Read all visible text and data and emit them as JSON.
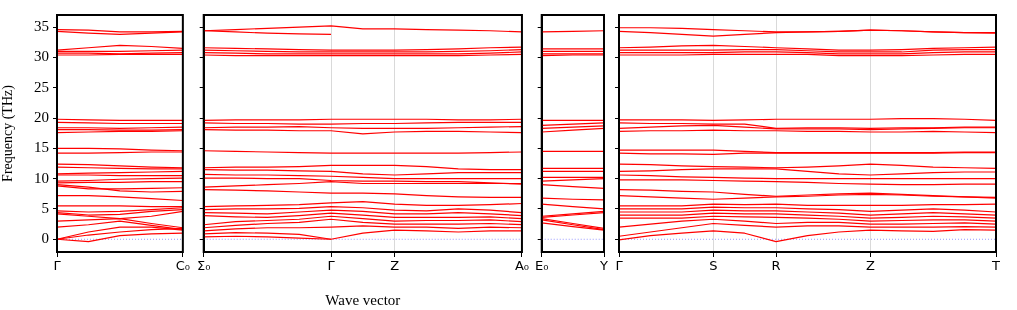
{
  "chart_data": [
    {
      "type": "line",
      "ylabel": "Frequency (THz)",
      "categories": [
        "Γ",
        null,
        null,
        null,
        "C₀"
      ],
      "ylim": [
        -2.1,
        37
      ],
      "yticks": [
        0,
        5,
        10,
        15,
        20,
        25,
        30,
        35
      ],
      "ref_lines": [
        {
          "axis": "y",
          "value": 0,
          "color": "#8080ff",
          "line_style": "dotted"
        }
      ],
      "series": [
        {
          "color": "#ff0000",
          "values": [
            34.6,
            34.5,
            34.2,
            34.2,
            34.3
          ]
        },
        {
          "color": "#ff0000",
          "values": [
            34.3,
            34.0,
            33.8,
            34.0,
            34.2
          ]
        },
        {
          "color": "#ff0000",
          "values": [
            31.2,
            31.6,
            32.0,
            31.8,
            31.5
          ]
        },
        {
          "color": "#ff0000",
          "values": [
            31.0,
            31.0,
            31.0,
            31.1,
            31.2
          ]
        },
        {
          "color": "#ff0000",
          "values": [
            30.7,
            30.7,
            30.6,
            30.7,
            30.8
          ]
        },
        {
          "color": "#ff0000",
          "values": [
            30.4,
            30.4,
            30.5,
            30.5,
            30.5
          ]
        },
        {
          "color": "#ff0000",
          "values": [
            19.8,
            19.7,
            19.6,
            19.6,
            19.6
          ]
        },
        {
          "color": "#ff0000",
          "values": [
            19.3,
            19.2,
            19.1,
            19.1,
            19.1
          ]
        },
        {
          "color": "#ff0000",
          "values": [
            18.4,
            18.4,
            18.3,
            18.4,
            18.5
          ]
        },
        {
          "color": "#ff0000",
          "values": [
            18.1,
            18.1,
            18.0,
            18.0,
            18.1
          ]
        },
        {
          "color": "#ff0000",
          "values": [
            17.6,
            17.7,
            17.8,
            17.8,
            17.9
          ]
        },
        {
          "color": "#ff0000",
          "values": [
            15.0,
            15.0,
            14.9,
            14.7,
            14.6
          ]
        },
        {
          "color": "#ff0000",
          "values": [
            14.2,
            14.2,
            14.3,
            14.4,
            14.4
          ]
        },
        {
          "color": "#ff0000",
          "values": [
            12.4,
            12.3,
            12.1,
            11.9,
            11.8
          ]
        },
        {
          "color": "#ff0000",
          "values": [
            11.9,
            11.8,
            11.7,
            11.6,
            11.6
          ]
        },
        {
          "color": "#ff0000",
          "values": [
            10.8,
            10.9,
            11.0,
            11.1,
            11.2
          ]
        },
        {
          "color": "#ff0000",
          "values": [
            10.6,
            10.6,
            10.5,
            10.5,
            10.5
          ]
        },
        {
          "color": "#ff0000",
          "values": [
            9.6,
            9.7,
            9.9,
            10.0,
            10.1
          ]
        },
        {
          "color": "#ff0000",
          "values": [
            9.3,
            9.4,
            9.4,
            9.5,
            9.5
          ]
        },
        {
          "color": "#ff0000",
          "values": [
            9.0,
            8.6,
            8.0,
            7.8,
            7.9
          ]
        },
        {
          "color": "#ff0000",
          "values": [
            8.8,
            8.3,
            8.3,
            8.4,
            8.5
          ]
        },
        {
          "color": "#ff0000",
          "values": [
            7.2,
            7.2,
            7.0,
            6.7,
            6.4
          ]
        },
        {
          "color": "#ff0000",
          "values": [
            5.5,
            5.5,
            5.5,
            5.4,
            5.4
          ]
        },
        {
          "color": "#ff0000",
          "values": [
            4.7,
            4.5,
            4.6,
            4.9,
            5.2
          ]
        },
        {
          "color": "#ff0000",
          "values": [
            4.4,
            4.0,
            4.1,
            4.6,
            4.9
          ]
        },
        {
          "color": "#ff0000",
          "values": [
            4.2,
            3.8,
            3.4,
            3.8,
            4.6
          ]
        },
        {
          "color": "#ff0000",
          "values": [
            3.0,
            3.2,
            3.4,
            2.6,
            1.9
          ]
        },
        {
          "color": "#ff0000",
          "values": [
            2.0,
            2.4,
            3.0,
            2.3,
            1.6
          ]
        },
        {
          "color": "#ff0000",
          "values": [
            0,
            1.2,
            2.0,
            2.0,
            1.5
          ]
        },
        {
          "color": "#ff0000",
          "values": [
            0,
            0.7,
            1.2,
            1.6,
            1.8
          ]
        },
        {
          "color": "#ff0000",
          "values": [
            0,
            -0.4,
            0.6,
            0.9,
            1.0
          ]
        }
      ]
    },
    {
      "type": "line",
      "xlabel": "Wave vector",
      "categories": [
        "Σ₀",
        null,
        null,
        null,
        "Γ",
        null,
        "Z",
        null,
        null,
        null,
        "A₀"
      ],
      "ylim": [
        -2.1,
        37
      ],
      "tick_labels": "x",
      "grid": "x",
      "ref_lines": [
        {
          "axis": "y",
          "value": 0,
          "color": "#8080ff",
          "line_style": "dotted"
        }
      ],
      "series": [
        {
          "color": "#ff0000",
          "values": [
            34.4,
            34.6,
            34.8,
            35.0,
            35.2,
            34.7,
            34.7,
            34.6,
            34.5,
            34.4,
            34.2
          ]
        },
        {
          "color": "#ff0000",
          "values": [
            34.4,
            34.2,
            34.0,
            33.9,
            33.8,
            null,
            null,
            null,
            null,
            null,
            null
          ]
        },
        {
          "color": "#ff0000",
          "values": [
            31.6,
            31.5,
            31.4,
            31.3,
            31.2,
            31.2,
            31.2,
            31.3,
            31.4,
            31.6,
            31.7
          ]
        },
        {
          "color": "#ff0000",
          "values": [
            31.2,
            31.1,
            31.0,
            30.9,
            30.9,
            30.9,
            30.9,
            30.9,
            31.0,
            31.1,
            31.3
          ]
        },
        {
          "color": "#ff0000",
          "values": [
            30.8,
            30.7,
            30.6,
            30.6,
            30.6,
            30.6,
            30.6,
            30.6,
            30.6,
            30.7,
            30.9
          ]
        },
        {
          "color": "#ff0000",
          "values": [
            30.4,
            30.3,
            30.3,
            30.3,
            30.3,
            30.3,
            30.3,
            30.3,
            30.3,
            30.4,
            30.5
          ]
        },
        {
          "color": "#ff0000",
          "values": [
            19.6,
            19.7,
            19.7,
            19.7,
            19.8,
            19.8,
            19.8,
            19.8,
            19.7,
            19.7,
            19.8
          ]
        },
        {
          "color": "#ff0000",
          "values": [
            19.2,
            19.1,
            19.1,
            19.0,
            19.0,
            19.1,
            19.1,
            19.2,
            19.3,
            19.3,
            19.3
          ]
        },
        {
          "color": "#ff0000",
          "values": [
            18.4,
            18.5,
            18.5,
            18.6,
            18.4,
            18.3,
            18.3,
            18.3,
            18.4,
            18.5,
            18.6
          ]
        },
        {
          "color": "#ff0000",
          "values": [
            18.1,
            18.0,
            18.0,
            17.9,
            17.9,
            17.4,
            17.7,
            17.8,
            17.8,
            17.7,
            17.6
          ]
        },
        {
          "color": "#ff0000",
          "values": [
            14.6,
            14.5,
            14.4,
            14.3,
            14.2,
            14.2,
            14.2,
            14.2,
            14.2,
            14.3,
            14.4
          ]
        },
        {
          "color": "#ff0000",
          "values": [
            11.8,
            11.9,
            11.9,
            12.0,
            12.2,
            12.2,
            12.2,
            12.0,
            11.6,
            11.5,
            11.5
          ]
        },
        {
          "color": "#ff0000",
          "values": [
            11.5,
            11.4,
            11.4,
            11.3,
            11.2,
            10.8,
            10.6,
            10.8,
            11.0,
            11.0,
            11.0
          ]
        },
        {
          "color": "#ff0000",
          "values": [
            10.7,
            10.6,
            10.6,
            10.5,
            10.4,
            10.2,
            10.0,
            10.0,
            10.0,
            10.0,
            10.0
          ]
        },
        {
          "color": "#ff0000",
          "values": [
            10.1,
            10.1,
            10.0,
            10.0,
            9.7,
            9.6,
            9.6,
            9.5,
            9.5,
            9.3,
            9.1
          ]
        },
        {
          "color": "#ff0000",
          "values": [
            8.6,
            8.8,
            9.0,
            9.2,
            9.5,
            9.2,
            9.2,
            9.2,
            9.2,
            9.2,
            9.2
          ]
        },
        {
          "color": "#ff0000",
          "values": [
            8.2,
            8.1,
            8.0,
            7.8,
            7.6,
            7.6,
            7.5,
            7.2,
            7.0,
            6.9,
            6.9
          ]
        },
        {
          "color": "#ff0000",
          "values": [
            5.4,
            5.5,
            5.6,
            5.7,
            6.0,
            6.2,
            5.8,
            5.6,
            5.6,
            5.7,
            5.9
          ]
        },
        {
          "color": "#ff0000",
          "values": [
            4.9,
            5.0,
            5.0,
            5.1,
            5.4,
            5.2,
            4.8,
            4.7,
            5.0,
            4.8,
            4.4
          ]
        },
        {
          "color": "#ff0000",
          "values": [
            4.4,
            4.3,
            4.2,
            4.5,
            4.8,
            4.6,
            4.2,
            4.2,
            4.4,
            4.2,
            3.9
          ]
        },
        {
          "color": "#ff0000",
          "values": [
            3.9,
            3.7,
            3.6,
            3.9,
            4.3,
            4.0,
            3.6,
            3.6,
            3.6,
            3.7,
            3.4
          ]
        },
        {
          "color": "#ff0000",
          "values": [
            2.4,
            2.9,
            3.1,
            3.3,
            3.8,
            3.4,
            3.0,
            3.1,
            3.1,
            3.2,
            2.9
          ]
        },
        {
          "color": "#ff0000",
          "values": [
            1.9,
            2.3,
            2.6,
            2.8,
            3.3,
            2.8,
            2.5,
            2.5,
            2.5,
            2.6,
            2.4
          ]
        },
        {
          "color": "#ff0000",
          "values": [
            1.4,
            1.7,
            1.9,
            1.9,
            2.0,
            2.2,
            2.0,
            2.0,
            1.8,
            2.0,
            1.9
          ]
        },
        {
          "color": "#ff0000",
          "values": [
            0.9,
            1.1,
            1.0,
            0.8,
            0,
            1.0,
            1.5,
            1.4,
            1.2,
            1.4,
            1.4
          ]
        },
        {
          "color": "#ff0000",
          "values": [
            0.4,
            0.5,
            0.4,
            0.2,
            0,
            null,
            null,
            null,
            null,
            null,
            null
          ]
        }
      ]
    },
    {
      "type": "line",
      "categories": [
        "E₀",
        null,
        "Y"
      ],
      "ylim": [
        -2.1,
        37
      ],
      "tick_labels": "x",
      "ref_lines": [
        {
          "axis": "y",
          "value": 0,
          "color": "#8080ff",
          "line_style": "dotted"
        }
      ],
      "series": [
        {
          "color": "#ff0000",
          "values": [
            34.2,
            34.3,
            34.4
          ]
        },
        {
          "color": "#ff0000",
          "values": [
            31.4,
            31.4,
            31.4
          ]
        },
        {
          "color": "#ff0000",
          "values": [
            31.0,
            31.0,
            31.0
          ]
        },
        {
          "color": "#ff0000",
          "values": [
            30.6,
            30.6,
            30.6
          ]
        },
        {
          "color": "#ff0000",
          "values": [
            30.3,
            30.4,
            30.4
          ]
        },
        {
          "color": "#ff0000",
          "values": [
            19.6,
            19.6,
            19.6
          ]
        },
        {
          "color": "#ff0000",
          "values": [
            18.8,
            19.0,
            19.2
          ]
        },
        {
          "color": "#ff0000",
          "values": [
            18.3,
            18.5,
            18.7
          ]
        },
        {
          "color": "#ff0000",
          "values": [
            17.7,
            18.0,
            18.3
          ]
        },
        {
          "color": "#ff0000",
          "values": [
            14.5,
            14.5,
            14.5
          ]
        },
        {
          "color": "#ff0000",
          "values": [
            11.7,
            11.7,
            11.7
          ]
        },
        {
          "color": "#ff0000",
          "values": [
            11.2,
            11.2,
            11.2
          ]
        },
        {
          "color": "#ff0000",
          "values": [
            10.2,
            10.2,
            10.2
          ]
        },
        {
          "color": "#ff0000",
          "values": [
            9.6,
            9.8,
            10.0
          ]
        },
        {
          "color": "#ff0000",
          "values": [
            9.0,
            8.7,
            8.4
          ]
        },
        {
          "color": "#ff0000",
          "values": [
            6.8,
            6.6,
            6.5
          ]
        },
        {
          "color": "#ff0000",
          "values": [
            5.8,
            5.4,
            5.0
          ]
        },
        {
          "color": "#ff0000",
          "values": [
            3.8,
            4.2,
            4.6
          ]
        },
        {
          "color": "#ff0000",
          "values": [
            3.6,
            4.0,
            4.4
          ]
        },
        {
          "color": "#ff0000",
          "values": [
            3.4,
            2.6,
            1.8
          ]
        },
        {
          "color": "#ff0000",
          "values": [
            3.2,
            2.4,
            1.6
          ]
        },
        {
          "color": "#ff0000",
          "values": [
            2.7,
            2.1,
            1.5
          ]
        }
      ]
    },
    {
      "type": "line",
      "categories": [
        "Γ",
        null,
        null,
        "S",
        null,
        "R",
        null,
        null,
        "Z",
        null,
        null,
        null,
        "T"
      ],
      "ylim": [
        -2.1,
        37
      ],
      "tick_labels": "x",
      "grid": "x",
      "ref_lines": [
        {
          "axis": "y",
          "value": 0,
          "color": "#8080ff",
          "line_style": "dotted"
        }
      ],
      "series": [
        {
          "color": "#ff0000",
          "values": [
            34.9,
            34.9,
            34.8,
            34.6,
            34.4,
            34.2,
            34.2,
            34.3,
            34.5,
            34.4,
            34.2,
            34.1,
            34.1
          ]
        },
        {
          "color": "#ff0000",
          "values": [
            34.3,
            34.1,
            33.8,
            33.5,
            33.8,
            34.1,
            34.2,
            34.3,
            34.5,
            34.4,
            34.2,
            34.1,
            34.0
          ]
        },
        {
          "color": "#ff0000",
          "values": [
            31.6,
            31.7,
            31.9,
            32.0,
            31.8,
            31.6,
            31.4,
            31.2,
            31.2,
            31.3,
            31.5,
            31.6,
            31.7
          ]
        },
        {
          "color": "#ff0000",
          "values": [
            31.2,
            31.2,
            31.2,
            31.2,
            31.3,
            31.3,
            31.1,
            30.9,
            30.9,
            30.9,
            31.2,
            31.3,
            31.3
          ]
        },
        {
          "color": "#ff0000",
          "values": [
            30.8,
            30.8,
            30.8,
            30.8,
            30.9,
            30.9,
            30.8,
            30.6,
            30.6,
            30.6,
            30.8,
            30.9,
            30.9
          ]
        },
        {
          "color": "#ff0000",
          "values": [
            30.4,
            30.4,
            30.4,
            30.5,
            30.5,
            30.5,
            30.5,
            30.3,
            30.3,
            30.3,
            30.4,
            30.5,
            30.5
          ]
        },
        {
          "color": "#ff0000",
          "values": [
            19.7,
            19.7,
            19.7,
            19.6,
            19.7,
            19.8,
            19.8,
            19.8,
            19.8,
            19.9,
            19.9,
            19.8,
            19.6
          ]
        },
        {
          "color": "#ff0000",
          "values": [
            19.2,
            19.1,
            19.1,
            19.0,
            19.0,
            18.3,
            18.4,
            18.4,
            18.3,
            18.4,
            18.4,
            18.5,
            18.5
          ]
        },
        {
          "color": "#ff0000",
          "values": [
            18.3,
            18.5,
            18.7,
            18.8,
            18.5,
            18.2,
            18.2,
            18.2,
            18.1,
            18.2,
            18.3,
            18.4,
            18.4
          ]
        },
        {
          "color": "#ff0000",
          "values": [
            17.8,
            17.9,
            17.9,
            18.0,
            17.9,
            17.9,
            17.8,
            17.8,
            17.7,
            17.7,
            17.8,
            17.7,
            17.6
          ]
        },
        {
          "color": "#ff0000",
          "values": [
            14.7,
            14.7,
            14.7,
            14.7,
            14.5,
            14.3,
            14.3,
            14.3,
            14.3,
            14.3,
            14.3,
            14.4,
            14.4
          ]
        },
        {
          "color": "#ff0000",
          "values": [
            14.2,
            14.1,
            14.1,
            14.0,
            14.2,
            14.2,
            14.2,
            14.2,
            14.2,
            14.2,
            14.2,
            14.3,
            14.3
          ]
        },
        {
          "color": "#ff0000",
          "values": [
            12.4,
            12.3,
            12.1,
            12.0,
            11.9,
            11.8,
            11.9,
            12.1,
            12.4,
            12.2,
            11.9,
            11.8,
            11.7
          ]
        },
        {
          "color": "#ff0000",
          "values": [
            11.2,
            11.3,
            11.5,
            11.6,
            11.6,
            11.6,
            11.2,
            10.8,
            10.6,
            10.8,
            11.0,
            11.1,
            11.1
          ]
        },
        {
          "color": "#ff0000",
          "values": [
            10.6,
            10.5,
            10.3,
            10.2,
            10.1,
            10.0,
            10.0,
            10.0,
            10.0,
            10.0,
            10.0,
            10.0,
            10.0
          ]
        },
        {
          "color": "#ff0000",
          "values": [
            9.8,
            9.8,
            9.8,
            9.7,
            9.6,
            9.5,
            9.4,
            9.2,
            9.1,
            9.0,
            9.0,
            9.1,
            9.1
          ]
        },
        {
          "color": "#ff0000",
          "values": [
            8.2,
            8.1,
            7.9,
            7.8,
            7.4,
            7.1,
            7.3,
            7.5,
            7.6,
            7.4,
            7.2,
            7.0,
            6.9
          ]
        },
        {
          "color": "#ff0000",
          "values": [
            7.2,
            7.0,
            6.8,
            6.6,
            6.8,
            7.0,
            7.1,
            7.3,
            7.4,
            7.3,
            7.1,
            7.0,
            6.8
          ]
        },
        {
          "color": "#ff0000",
          "values": [
            5.5,
            5.5,
            5.5,
            5.8,
            5.7,
            5.8,
            5.6,
            5.6,
            5.6,
            5.6,
            5.7,
            5.7,
            5.8
          ]
        },
        {
          "color": "#ff0000",
          "values": [
            5.0,
            5.0,
            5.0,
            5.3,
            5.2,
            5.2,
            5.0,
            4.9,
            4.6,
            4.8,
            5.0,
            4.8,
            4.5
          ]
        },
        {
          "color": "#ff0000",
          "values": [
            4.5,
            4.5,
            4.5,
            4.8,
            4.7,
            4.7,
            4.5,
            4.3,
            4.0,
            4.2,
            4.4,
            4.2,
            4.0
          ]
        },
        {
          "color": "#ff0000",
          "values": [
            4.0,
            4.0,
            4.0,
            4.3,
            4.2,
            4.2,
            4.0,
            3.8,
            3.5,
            3.6,
            3.8,
            3.7,
            3.5
          ]
        },
        {
          "color": "#ff0000",
          "values": [
            3.5,
            3.5,
            3.5,
            3.8,
            3.7,
            3.6,
            3.5,
            3.3,
            3.0,
            3.1,
            3.2,
            3.2,
            3.0
          ]
        },
        {
          "color": "#ff0000",
          "values": [
            2.0,
            2.5,
            3.0,
            3.3,
            3.0,
            2.6,
            2.8,
            2.8,
            2.5,
            2.5,
            2.6,
            2.7,
            2.5
          ]
        },
        {
          "color": "#ff0000",
          "values": [
            0.5,
            1.2,
            1.9,
            2.6,
            2.3,
            2.0,
            2.2,
            2.2,
            2.0,
            2.0,
            2.0,
            2.1,
            2.0
          ]
        },
        {
          "color": "#ff0000",
          "values": [
            -0.1,
            0.6,
            1.0,
            1.4,
            1.0,
            -0.4,
            0.6,
            1.2,
            1.5,
            1.4,
            1.3,
            1.6,
            1.5
          ]
        }
      ]
    }
  ]
}
